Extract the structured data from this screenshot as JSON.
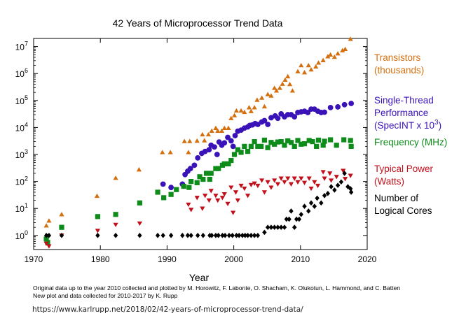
{
  "chart_data": {
    "type": "scatter",
    "title": "42 Years of Microprocessor Trend Data",
    "xlabel": "Year",
    "ylabel": "",
    "xlim": [
      1970,
      2020
    ],
    "ylim": [
      0.3,
      20000000
    ],
    "yscale": "log",
    "grid": false,
    "xticks": [
      1970,
      1980,
      1990,
      2000,
      2010,
      2020
    ],
    "yticks": [
      {
        "value": 1,
        "base": "10",
        "exp": "0"
      },
      {
        "value": 10,
        "base": "10",
        "exp": "1"
      },
      {
        "value": 100,
        "base": "10",
        "exp": "2"
      },
      {
        "value": 1000,
        "base": "10",
        "exp": "3"
      },
      {
        "value": 10000,
        "base": "10",
        "exp": "4"
      },
      {
        "value": 100000,
        "base": "10",
        "exp": "5"
      },
      {
        "value": 1000000,
        "base": "10",
        "exp": "6"
      },
      {
        "value": 10000000,
        "base": "10",
        "exp": "7"
      }
    ],
    "series": [
      {
        "name": "Transistors (thousands)",
        "label_lines": [
          "Transistors",
          "(thousands)"
        ],
        "marker": "triangle-up",
        "color": "#d46f0f",
        "points": [
          [
            1971.9,
            2.3
          ],
          [
            1972.3,
            3.5
          ],
          [
            1974.2,
            6
          ],
          [
            1979.5,
            29
          ],
          [
            1982.3,
            134
          ],
          [
            1985.8,
            275
          ],
          [
            1989.3,
            1200
          ],
          [
            1990.5,
            1200
          ],
          [
            1992.6,
            3100
          ],
          [
            1993.2,
            1200
          ],
          [
            1993.4,
            3100
          ],
          [
            1994.5,
            3200
          ],
          [
            1995.3,
            5500
          ],
          [
            1995.6,
            3300
          ],
          [
            1996.2,
            5500
          ],
          [
            1996.7,
            7500
          ],
          [
            1997.3,
            9500
          ],
          [
            1997.6,
            7500
          ],
          [
            1998.2,
            7500
          ],
          [
            1998.6,
            9500
          ],
          [
            1999.2,
            9500
          ],
          [
            1999.6,
            22000
          ],
          [
            2000.1,
            28000
          ],
          [
            2000.4,
            42000
          ],
          [
            2001.1,
            42000
          ],
          [
            2001.6,
            37000
          ],
          [
            2002.3,
            55000
          ],
          [
            2002.6,
            40000
          ],
          [
            2003.1,
            55000
          ],
          [
            2003.5,
            105000
          ],
          [
            2004.2,
            125000
          ],
          [
            2004.6,
            60000
          ],
          [
            2005.1,
            170000
          ],
          [
            2005.6,
            150000
          ],
          [
            2006.1,
            290000
          ],
          [
            2006.4,
            230000
          ],
          [
            2006.9,
            290000
          ],
          [
            2007.3,
            410000
          ],
          [
            2007.7,
            580000
          ],
          [
            2008.1,
            780000
          ],
          [
            2008.4,
            400000
          ],
          [
            2008.8,
            230000
          ],
          [
            2009.6,
            1200000
          ],
          [
            2010.1,
            2000000
          ],
          [
            2010.6,
            1100000
          ],
          [
            2011.2,
            2000000
          ],
          [
            2011.6,
            1400000
          ],
          [
            2012.3,
            1800000
          ],
          [
            2012.7,
            2500000
          ],
          [
            2013.4,
            3100000
          ],
          [
            2014.1,
            4300000
          ],
          [
            2014.5,
            5000000
          ],
          [
            2015.1,
            4100000
          ],
          [
            2015.6,
            5500000
          ],
          [
            2016.3,
            7200000
          ],
          [
            2016.7,
            8000000
          ],
          [
            2017.5,
            19000000
          ]
        ]
      },
      {
        "name": "Single-Thread Performance (SpecINT x 10^3)",
        "label_lines": [
          "Single-Thread",
          "Performance"
        ],
        "label_last_prefix": "(SpecINT x 10",
        "label_last_sup": "3",
        "label_last_suffix": ")",
        "marker": "circle",
        "color": "#3a13b8",
        "points": [
          [
            1989.4,
            80
          ],
          [
            1990.6,
            60
          ],
          [
            1992.3,
            80
          ],
          [
            1992.7,
            180
          ],
          [
            1993.1,
            240
          ],
          [
            1993.5,
            300
          ],
          [
            1994.1,
            400
          ],
          [
            1994.6,
            750
          ],
          [
            1995.2,
            1100
          ],
          [
            1995.7,
            1300
          ],
          [
            1996.3,
            1500
          ],
          [
            1996.6,
            2200
          ],
          [
            1997.1,
            1900
          ],
          [
            1997.5,
            1000
          ],
          [
            1997.8,
            2900
          ],
          [
            1998.2,
            2200
          ],
          [
            1998.6,
            2700
          ],
          [
            1999.1,
            4300
          ],
          [
            1999.6,
            3200
          ],
          [
            1999.9,
            2000
          ],
          [
            2000.2,
            5000
          ],
          [
            2000.6,
            7300
          ],
          [
            2001.1,
            8000
          ],
          [
            2001.6,
            9500
          ],
          [
            2002.1,
            10500
          ],
          [
            2002.4,
            12000
          ],
          [
            2002.8,
            12500
          ],
          [
            2003.2,
            14000
          ],
          [
            2003.6,
            13000
          ],
          [
            2004.2,
            16000
          ],
          [
            2004.6,
            18000
          ],
          [
            2005.1,
            13000
          ],
          [
            2005.6,
            23000
          ],
          [
            2006.2,
            27000
          ],
          [
            2006.6,
            22000
          ],
          [
            2007.1,
            32000
          ],
          [
            2007.6,
            25000
          ],
          [
            2008.1,
            30000
          ],
          [
            2008.6,
            30000
          ],
          [
            2009.1,
            25000
          ],
          [
            2009.6,
            36000
          ],
          [
            2010.1,
            38000
          ],
          [
            2010.6,
            40000
          ],
          [
            2011.1,
            36000
          ],
          [
            2011.6,
            48000
          ],
          [
            2012.1,
            48000
          ],
          [
            2012.6,
            40000
          ],
          [
            2013.1,
            36000
          ],
          [
            2013.6,
            37000
          ],
          [
            2014.5,
            55000
          ],
          [
            2015.6,
            58000
          ],
          [
            2016.6,
            70000
          ],
          [
            2017.6,
            78000
          ]
        ]
      },
      {
        "name": "Frequency (MHz)",
        "label_lines": [
          "Frequency (MHz)"
        ],
        "marker": "square",
        "color": "#0e8c1a",
        "points": [
          [
            1971.9,
            0.74
          ],
          [
            1972.1,
            0.55
          ],
          [
            1974.2,
            2
          ],
          [
            1979.6,
            5
          ],
          [
            1982.3,
            6
          ],
          [
            1985.9,
            16
          ],
          [
            1988.6,
            40
          ],
          [
            1989.5,
            25
          ],
          [
            1990.6,
            33
          ],
          [
            1991.4,
            50
          ],
          [
            1992.5,
            66
          ],
          [
            1993.3,
            60
          ],
          [
            1993.6,
            100
          ],
          [
            1994.5,
            90
          ],
          [
            1994.9,
            150
          ],
          [
            1995.4,
            120
          ],
          [
            1995.9,
            200
          ],
          [
            1996.4,
            120
          ],
          [
            1996.6,
            200
          ],
          [
            1997.3,
            300
          ],
          [
            1997.7,
            300
          ],
          [
            1998.3,
            400
          ],
          [
            1998.6,
            450
          ],
          [
            1999.2,
            450
          ],
          [
            1999.6,
            600
          ],
          [
            2000.1,
            1000
          ],
          [
            2000.6,
            1500
          ],
          [
            2001.1,
            1200
          ],
          [
            2001.6,
            2000
          ],
          [
            2002.1,
            1300
          ],
          [
            2002.6,
            2000
          ],
          [
            2003.1,
            3000
          ],
          [
            2003.6,
            2000
          ],
          [
            2004.1,
            2000
          ],
          [
            2004.6,
            3400
          ],
          [
            2005.1,
            1800
          ],
          [
            2005.6,
            2800
          ],
          [
            2006.1,
            2400
          ],
          [
            2006.6,
            2900
          ],
          [
            2007.1,
            3000
          ],
          [
            2007.6,
            2200
          ],
          [
            2008.1,
            3200
          ],
          [
            2008.6,
            2800
          ],
          [
            2009.1,
            2000
          ],
          [
            2009.6,
            3300
          ],
          [
            2010.1,
            2400
          ],
          [
            2010.6,
            2500
          ],
          [
            2011.3,
            3300
          ],
          [
            2011.8,
            3000
          ],
          [
            2012.4,
            2000
          ],
          [
            2012.7,
            3400
          ],
          [
            2013.4,
            2200
          ],
          [
            2013.6,
            3100
          ],
          [
            2014.5,
            3500
          ],
          [
            2015.4,
            2200
          ],
          [
            2016.5,
            3500
          ],
          [
            2017.5,
            3300
          ],
          [
            2017.6,
            2000
          ]
        ]
      },
      {
        "name": "Typical Power (Watts)",
        "label_lines": [
          "Typical Power",
          "(Watts)"
        ],
        "marker": "triangle-down",
        "color": "#c2101b",
        "points": [
          [
            1971.9,
            0.5
          ],
          [
            1972.3,
            0.4
          ],
          [
            1974.2,
            1
          ],
          [
            1979.6,
            1.5
          ],
          [
            1982.3,
            2.5
          ],
          [
            1985.9,
            2.8
          ],
          [
            1993.2,
            14
          ],
          [
            1993.6,
            9
          ],
          [
            1994.5,
            25
          ],
          [
            1995.3,
            10
          ],
          [
            1995.7,
            30
          ],
          [
            1996.3,
            20
          ],
          [
            1996.6,
            45
          ],
          [
            1997.3,
            30
          ],
          [
            1997.6,
            20
          ],
          [
            1998.3,
            25
          ],
          [
            1998.6,
            34
          ],
          [
            1999.1,
            15
          ],
          [
            1999.6,
            60
          ],
          [
            1999.9,
            7
          ],
          [
            2000.3,
            40
          ],
          [
            2000.6,
            20
          ],
          [
            2001.1,
            70
          ],
          [
            2001.6,
            55
          ],
          [
            2002.1,
            30
          ],
          [
            2002.6,
            75
          ],
          [
            2003.1,
            85
          ],
          [
            2003.6,
            70
          ],
          [
            2004.2,
            110
          ],
          [
            2004.6,
            40
          ],
          [
            2005.1,
            95
          ],
          [
            2005.6,
            60
          ],
          [
            2006.1,
            110
          ],
          [
            2006.6,
            80
          ],
          [
            2007.1,
            130
          ],
          [
            2007.6,
            95
          ],
          [
            2008.1,
            130
          ],
          [
            2008.6,
            80
          ],
          [
            2009.1,
            130
          ],
          [
            2009.6,
            95
          ],
          [
            2010.1,
            130
          ],
          [
            2010.6,
            90
          ],
          [
            2011.3,
            130
          ],
          [
            2011.6,
            55
          ],
          [
            2012.1,
            95
          ],
          [
            2012.6,
            70
          ],
          [
            2013.4,
            225
          ],
          [
            2013.6,
            130
          ],
          [
            2014.4,
            200
          ],
          [
            2014.6,
            110
          ],
          [
            2015.4,
            150
          ],
          [
            2016.4,
            250
          ],
          [
            2016.7,
            125
          ],
          [
            2017.5,
            165
          ]
        ]
      },
      {
        "name": "Number of Logical Cores",
        "label_lines": [
          "Number of",
          "Logical Cores"
        ],
        "marker": "diamond",
        "color": "#000000",
        "points": [
          [
            1971.9,
            1
          ],
          [
            1972.3,
            1
          ],
          [
            1974.2,
            1
          ],
          [
            1979.6,
            1
          ],
          [
            1982.3,
            1
          ],
          [
            1985.9,
            1
          ],
          [
            1988.6,
            1
          ],
          [
            1989.4,
            1
          ],
          [
            1990.6,
            1
          ],
          [
            1992.3,
            1
          ],
          [
            1993.1,
            1
          ],
          [
            1993.6,
            1
          ],
          [
            1994.6,
            1
          ],
          [
            1995.4,
            1
          ],
          [
            1996.4,
            1
          ],
          [
            1996.7,
            1
          ],
          [
            1997.3,
            1
          ],
          [
            1997.7,
            1
          ],
          [
            1998.3,
            1
          ],
          [
            1998.7,
            1
          ],
          [
            1999.3,
            1
          ],
          [
            1999.8,
            1
          ],
          [
            2000.4,
            1
          ],
          [
            2000.8,
            1
          ],
          [
            2001.3,
            1
          ],
          [
            2001.7,
            1
          ],
          [
            2002.1,
            1
          ],
          [
            2002.6,
            1
          ],
          [
            2003.1,
            1
          ],
          [
            2003.6,
            1
          ],
          [
            2004.6,
            1.3
          ],
          [
            2005.1,
            2
          ],
          [
            2005.6,
            2
          ],
          [
            2006.1,
            2
          ],
          [
            2006.6,
            2
          ],
          [
            2007.1,
            2
          ],
          [
            2007.6,
            2
          ],
          [
            2007.9,
            4
          ],
          [
            2008.3,
            4
          ],
          [
            2008.6,
            8
          ],
          [
            2009.1,
            2
          ],
          [
            2009.4,
            4
          ],
          [
            2009.8,
            4
          ],
          [
            2010.1,
            6
          ],
          [
            2010.6,
            12
          ],
          [
            2011.2,
            8
          ],
          [
            2011.6,
            16
          ],
          [
            2012.1,
            12
          ],
          [
            2012.5,
            24
          ],
          [
            2013.1,
            16
          ],
          [
            2013.6,
            30
          ],
          [
            2014.1,
            36
          ],
          [
            2014.6,
            64
          ],
          [
            2015.1,
            48
          ],
          [
            2015.6,
            72
          ],
          [
            2016.1,
            96
          ],
          [
            2016.6,
            200
          ],
          [
            2017.1,
            64
          ],
          [
            2017.5,
            54
          ],
          [
            2017.6,
            40
          ]
        ]
      }
    ]
  },
  "footer": {
    "caption_line1": "Original data up to the year 2010 collected and plotted by M. Horowitz, F. Labonte, O. Shacham, K. Olukotun, L. Hammond, and C. Batten",
    "caption_line2": "New plot and data collected for 2010-2017 by K. Rupp",
    "url": "https://www.karlrupp.net/2018/02/42-years-of-microprocessor-trend-data/"
  }
}
